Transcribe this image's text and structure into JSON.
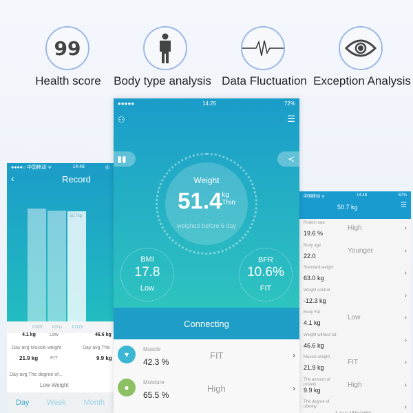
{
  "features": [
    {
      "icon": "health-score-icon",
      "icon_text": "99",
      "label": "Health score"
    },
    {
      "icon": "person-icon",
      "label": "Body type analysis"
    },
    {
      "icon": "pulse-icon",
      "label": "Data Fluctuation"
    },
    {
      "icon": "eye-icon",
      "label": "Exception Analysis"
    }
  ],
  "left_phone": {
    "status": {
      "carrier": "●●●●○ 中国移动 ᯤ",
      "time": "14:48"
    },
    "title": "Record",
    "bar_label": "50.7kg",
    "dates": [
      "07/07",
      "07/11",
      "07/13"
    ],
    "partial_row": {
      "left": "4.1 kg",
      "mid": "Low",
      "right": "46.6 kg"
    },
    "stats": [
      {
        "label": "Day avg Muscle weight",
        "value": "21.9 kg",
        "status": "FIT"
      },
      {
        "label": "Day avg The",
        "value": "9.9 kg"
      }
    ],
    "degree": {
      "label": "Day avg The degree of...",
      "value": "Low Weight"
    },
    "tabs": [
      "Day",
      "Week",
      "Month"
    ]
  },
  "center_phone": {
    "status": {
      "signal": "●●●●●",
      "time": "14:25",
      "battery": "72%"
    },
    "weight": {
      "label": "Weight",
      "value": "51.4",
      "unit": "kg",
      "status": "Thin",
      "note": "weighed before 6 day"
    },
    "bmi": {
      "label": "BMI",
      "value": "17.8",
      "status": "Low"
    },
    "bfr": {
      "label": "BFR",
      "value": "10.6%",
      "status": "FIT"
    },
    "connecting": "Connecting",
    "rows": [
      {
        "label": "Muscle",
        "value": "42.3 %",
        "status": "FIT",
        "color": "#3bb6d3"
      },
      {
        "label": "Moisture",
        "value": "65.5 %",
        "status": "High",
        "color": "#8cc063"
      }
    ]
  },
  "right_phone": {
    "status": {
      "carrier": "中国移动 ᯤ",
      "time": "14:48",
      "battery": "67%"
    },
    "title": "50.7 kg",
    "rows": [
      {
        "label": "Protein rate",
        "value": "19.6 %",
        "status": "High"
      },
      {
        "label": "Body age",
        "value": "22.0",
        "status": "Younger"
      },
      {
        "label": "Standard weight",
        "value": "63.0 kg",
        "status": ""
      },
      {
        "label": "Weight control",
        "value": "-12.3 kg",
        "status": ""
      },
      {
        "label": "Body Fat",
        "value": "4.1 kg",
        "status": "Low"
      },
      {
        "label": "Weight without fat",
        "value": "46.6 kg",
        "status": ""
      },
      {
        "label": "Muscle weight",
        "value": "21.9 kg",
        "status": "FIT"
      },
      {
        "label": "The amount of protein",
        "value": "9.9 kg",
        "status": "High"
      },
      {
        "label": "The degree of obesity",
        "value": "",
        "status": "Low Weight"
      }
    ]
  }
}
